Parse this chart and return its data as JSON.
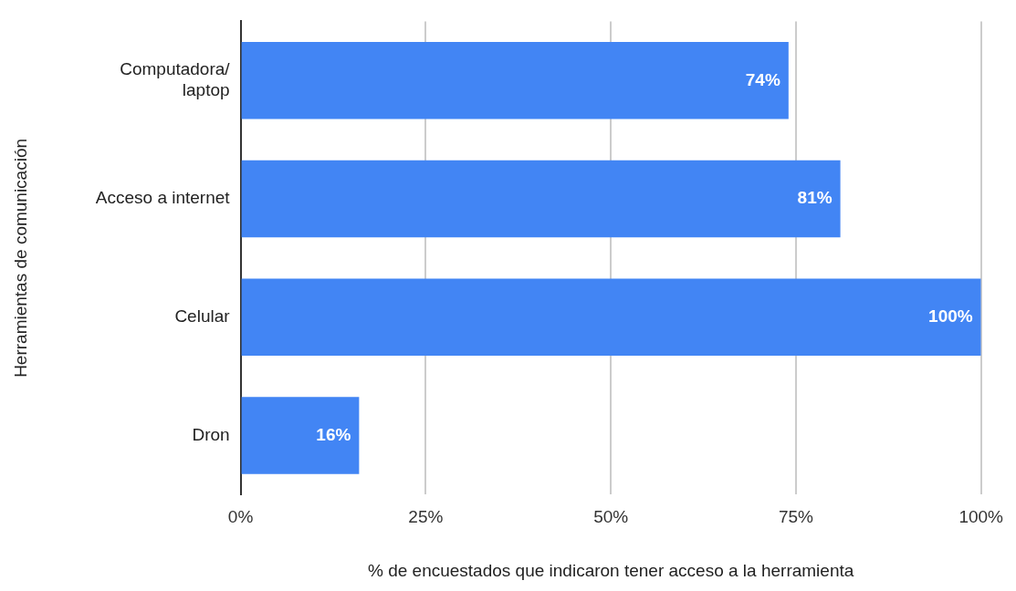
{
  "chart_data": {
    "type": "bar",
    "orientation": "horizontal",
    "xlabel": "% de encuestados que indicaron tener acceso a la herramienta",
    "ylabel": "Herramientas de comunicación",
    "categories": [
      "Computadora/\nlaptop",
      "Acceso a internet",
      "Celular",
      "Dron"
    ],
    "values": [
      74,
      81,
      100,
      16
    ],
    "color": "#4285f4",
    "value_labels": [
      "74%",
      "81%",
      "100%",
      "16%"
    ],
    "xlim": [
      0,
      100
    ],
    "xticks": [
      {
        "value": 0,
        "label": "0%"
      },
      {
        "value": 25,
        "label": "25%"
      },
      {
        "value": 50,
        "label": "50%"
      },
      {
        "value": 75,
        "label": "75%"
      },
      {
        "value": 100,
        "label": "100%"
      }
    ],
    "grid": "x",
    "legend": false
  }
}
